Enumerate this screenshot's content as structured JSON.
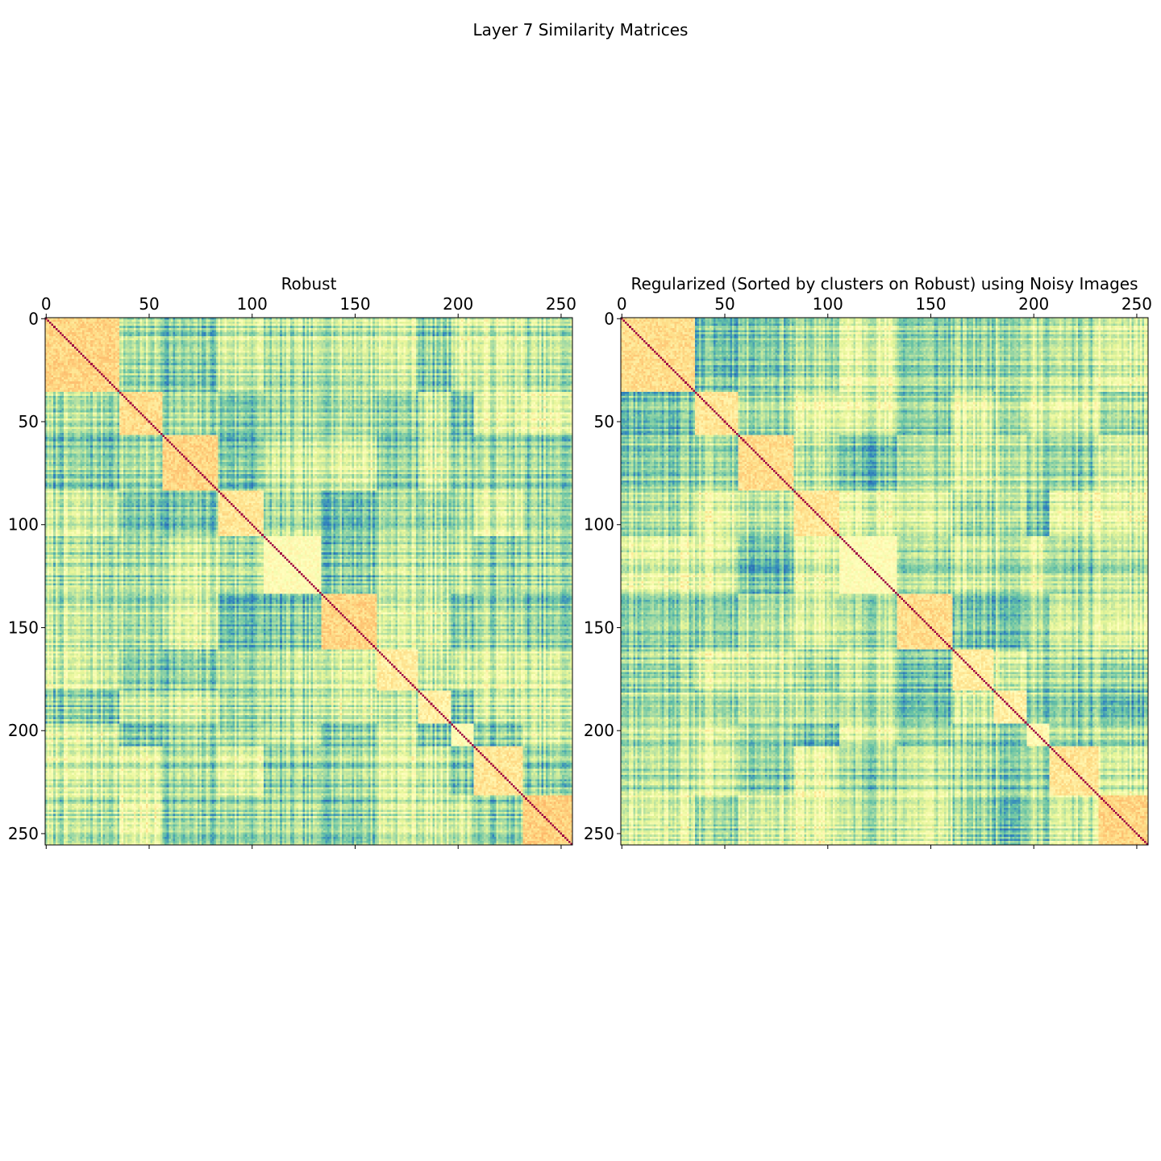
{
  "figure": {
    "suptitle": "Layer 7 Similarity Matrices"
  },
  "colormap": {
    "name": "Spectral_r",
    "stops": [
      "#2b5fae",
      "#3288bd",
      "#66c2a5",
      "#abdda4",
      "#e6f598",
      "#ffffbf",
      "#fee08b",
      "#fdae61",
      "#f46d43",
      "#d53e4f",
      "#9e0142"
    ]
  },
  "chart_data": [
    {
      "type": "heatmap",
      "title": "Robust",
      "n": 256,
      "xticks": [
        0,
        50,
        100,
        150,
        200,
        250
      ],
      "yticks": [
        0,
        50,
        100,
        150,
        200,
        250
      ],
      "xlim": [
        0,
        256
      ],
      "ylim": [
        256,
        0
      ],
      "value_range": [
        0,
        1
      ],
      "diagonal_value": 1.0,
      "cluster_bounds": [
        0,
        36,
        57,
        84,
        106,
        134,
        161,
        181,
        197,
        208,
        232,
        256
      ],
      "cluster_levels": [
        0.62,
        0.6,
        0.62,
        0.58,
        0.5,
        0.62,
        0.56,
        0.55,
        0.5,
        0.58,
        0.63
      ],
      "seed": 7
    },
    {
      "type": "heatmap",
      "title": "Regularized (Sorted by clusters on Robust) using Noisy Images",
      "n": 256,
      "xticks": [
        0,
        50,
        100,
        150,
        200,
        250
      ],
      "yticks": [
        0,
        50,
        100,
        150,
        200,
        250
      ],
      "xlim": [
        0,
        256
      ],
      "ylim": [
        256,
        0
      ],
      "value_range": [
        0,
        1
      ],
      "diagonal_value": 1.0,
      "cluster_bounds": [
        0,
        36,
        57,
        84,
        106,
        134,
        161,
        181,
        197,
        208,
        232,
        256
      ],
      "cluster_levels": [
        0.6,
        0.58,
        0.6,
        0.58,
        0.5,
        0.6,
        0.56,
        0.55,
        0.52,
        0.58,
        0.62
      ],
      "seed": 11
    }
  ]
}
